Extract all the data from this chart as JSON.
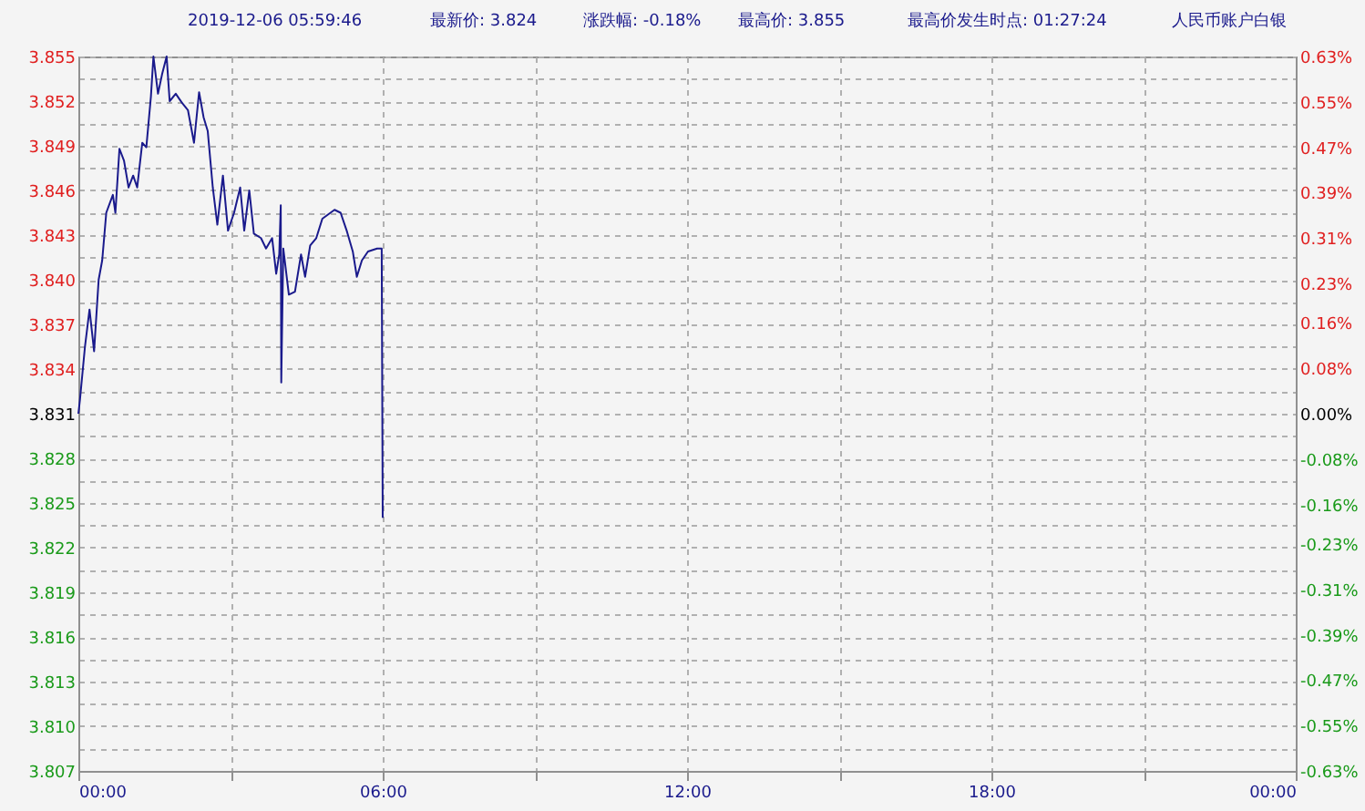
{
  "chart_data": {
    "type": "line",
    "annotations": [
      "2019-12-06 05:59:46",
      "最新价: 3.824",
      "涨跌幅: -0.18%",
      "最高价: 3.855",
      "最高价发生时点:  01:27:24",
      "人民币账户白银"
    ],
    "x": [
      0,
      0.03,
      0.13,
      0.22,
      0.31,
      0.4,
      0.47,
      0.55,
      0.68,
      0.73,
      0.81,
      0.9,
      0.99,
      1.08,
      1.16,
      1.26,
      1.34,
      1.43,
      1.48,
      1.57,
      1.65,
      1.74,
      1.8,
      1.92,
      2.04,
      2.16,
      2.28,
      2.38,
      2.47,
      2.55,
      2.65,
      2.74,
      2.85,
      2.95,
      3.07,
      3.19,
      3.27,
      3.37,
      3.46,
      3.6,
      3.7,
      3.82,
      3.9,
      3.96,
      3.99,
      4.0,
      4.04,
      4.15,
      4.27,
      4.39,
      4.47,
      4.57,
      4.69,
      4.81,
      5.05,
      5.17,
      5.29,
      5.41,
      5.49,
      5.59,
      5.71,
      5.89,
      5.98,
      6.0
    ],
    "series": [
      {
        "color": "#1a1a8c",
        "values": [
          3.831,
          3.8319,
          3.8355,
          3.838,
          3.8352,
          3.84,
          3.8413,
          3.8445,
          3.8457,
          3.8445,
          3.8488,
          3.848,
          3.8462,
          3.847,
          3.8462,
          3.8492,
          3.8489,
          3.8523,
          3.855,
          3.8525,
          3.8538,
          3.855,
          3.852,
          3.8525,
          3.8519,
          3.8514,
          3.8492,
          3.8526,
          3.8509,
          3.85,
          3.8462,
          3.8437,
          3.847,
          3.8433,
          3.8445,
          3.8462,
          3.8433,
          3.846,
          3.8431,
          3.8428,
          3.8421,
          3.8428,
          3.8404,
          3.8417,
          3.845,
          3.8331,
          3.8421,
          3.839,
          3.8392,
          3.8417,
          3.8402,
          3.8423,
          3.8428,
          3.8441,
          3.8447,
          3.8445,
          3.8433,
          3.8419,
          3.8402,
          3.8413,
          3.8419,
          3.8421,
          3.8421,
          3.824
        ]
      }
    ],
    "xlim": [
      0,
      24
    ],
    "xticks": [
      {
        "value": 0,
        "label": "00:00"
      },
      {
        "value": 3,
        "label": null
      },
      {
        "value": 6,
        "label": "06:00"
      },
      {
        "value": 9,
        "label": null
      },
      {
        "value": 12,
        "label": "12:00"
      },
      {
        "value": 15,
        "label": null
      },
      {
        "value": 18,
        "label": "18:00"
      },
      {
        "value": 21,
        "label": null
      },
      {
        "value": 24,
        "label": "00:00"
      }
    ],
    "ylim": [
      3.807,
      3.855
    ],
    "yticks": [
      {
        "value": 3.807,
        "label": "3.807"
      },
      {
        "value": 3.8085,
        "label": null
      },
      {
        "value": 3.81,
        "label": "3.810"
      },
      {
        "value": 3.8115,
        "label": null
      },
      {
        "value": 3.813,
        "label": "3.813"
      },
      {
        "value": 3.8145,
        "label": null
      },
      {
        "value": 3.816,
        "label": "3.816"
      },
      {
        "value": 3.8175,
        "label": null
      },
      {
        "value": 3.819,
        "label": "3.819"
      },
      {
        "value": 3.8205,
        "label": null
      },
      {
        "value": 3.822,
        "label": "3.822"
      },
      {
        "value": 3.8235,
        "label": null
      },
      {
        "value": 3.825,
        "label": "3.825"
      },
      {
        "value": 3.8265,
        "label": null
      },
      {
        "value": 3.828,
        "label": "3.828"
      },
      {
        "value": 3.8295,
        "label": null
      },
      {
        "value": 3.831,
        "label": "3.831"
      },
      {
        "value": 3.8325,
        "label": null
      },
      {
        "value": 3.834,
        "label": "3.834"
      },
      {
        "value": 3.8355,
        "label": null
      },
      {
        "value": 3.837,
        "label": "3.837"
      },
      {
        "value": 3.8385,
        "label": null
      },
      {
        "value": 3.84,
        "label": "3.840"
      },
      {
        "value": 3.8415,
        "label": null
      },
      {
        "value": 3.843,
        "label": "3.843"
      },
      {
        "value": 3.8445,
        "label": null
      },
      {
        "value": 3.846,
        "label": "3.846"
      },
      {
        "value": 3.8475,
        "label": null
      },
      {
        "value": 3.849,
        "label": "3.849"
      },
      {
        "value": 3.8505,
        "label": null
      },
      {
        "value": 3.852,
        "label": "3.852"
      },
      {
        "value": 3.8535,
        "label": null
      },
      {
        "value": 3.855,
        "label": "3.855"
      }
    ],
    "y2lim": [
      -0.63,
      0.63
    ],
    "y2ticks": [
      {
        "value": -0.63,
        "label": "-0.63%"
      },
      {
        "value": -0.55,
        "label": "-0.55%"
      },
      {
        "value": -0.47,
        "label": "-0.47%"
      },
      {
        "value": -0.39,
        "label": "-0.39%"
      },
      {
        "value": -0.31,
        "label": "-0.31%"
      },
      {
        "value": -0.23,
        "label": "-0.23%"
      },
      {
        "value": -0.16,
        "label": "-0.16%"
      },
      {
        "value": -0.08,
        "label": "-0.08%"
      },
      {
        "value": 0,
        "label": "0.00%"
      },
      {
        "value": 0.08,
        "label": "0.08%"
      },
      {
        "value": 0.16,
        "label": "0.16%"
      },
      {
        "value": 0.23,
        "label": "0.23%"
      },
      {
        "value": 0.31,
        "label": "0.31%"
      },
      {
        "value": 0.39,
        "label": "0.39%"
      },
      {
        "value": 0.47,
        "label": "0.47%"
      },
      {
        "value": 0.55,
        "label": "0.55%"
      },
      {
        "value": 0.63,
        "label": "0.63%"
      }
    ],
    "grid": true,
    "marker": "none",
    "line_style": "solid"
  }
}
